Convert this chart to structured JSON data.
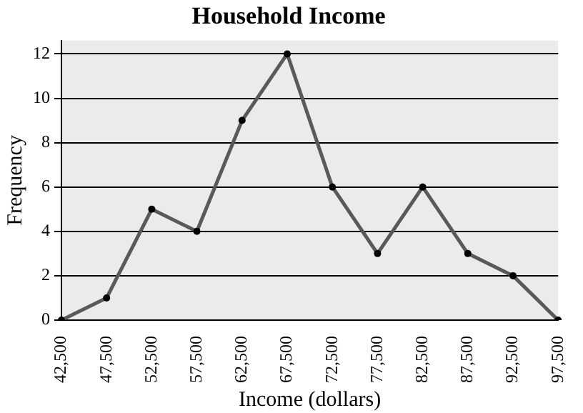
{
  "chart_data": {
    "type": "line",
    "title": "Household Income",
    "xlabel": "Income (dollars)",
    "ylabel": "Frequency",
    "categories": [
      "42,500",
      "47,500",
      "52,500",
      "57,500",
      "62,500",
      "67,500",
      "72,500",
      "77,500",
      "82,500",
      "87,500",
      "92,500",
      "97,500"
    ],
    "series": [
      {
        "color": "#595959",
        "values": [
          0,
          1,
          5,
          4,
          9,
          12,
          6,
          3,
          6,
          3,
          2,
          0
        ]
      }
    ],
    "ylim": [
      0,
      12.6
    ],
    "yticks": [
      0,
      2,
      4,
      6,
      8,
      10,
      12
    ],
    "grid": "y",
    "legend": false,
    "marker": "circle",
    "line_style": "solid"
  }
}
